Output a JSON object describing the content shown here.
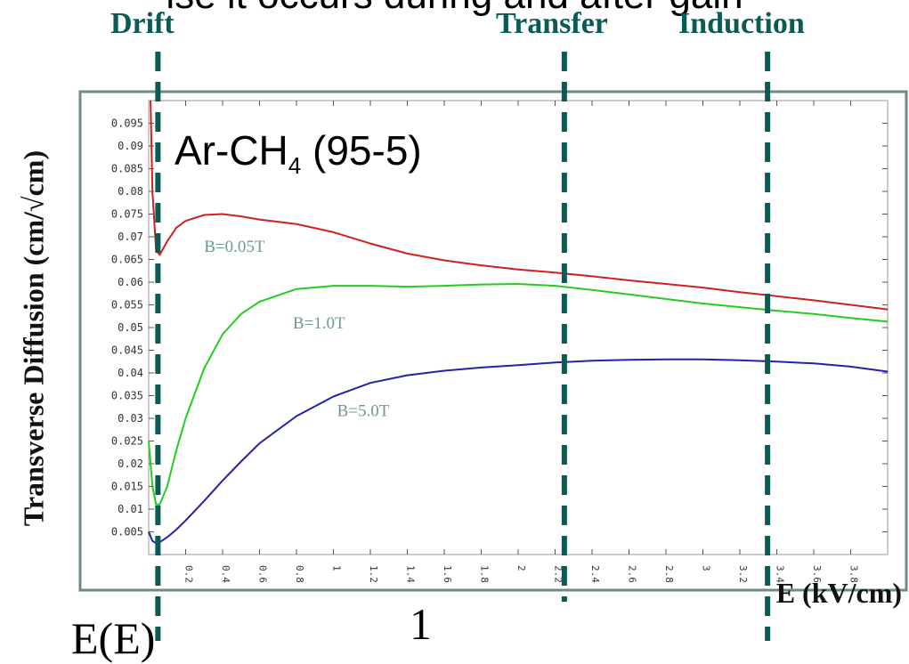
{
  "header": {
    "cut_banner": "ise it occurs during and after gain",
    "regions": [
      "Drift",
      "Transfer",
      "Induction"
    ]
  },
  "formula_fragment": {
    "left": "E(E)",
    "right": "1"
  },
  "chart_data": {
    "type": "line",
    "title": "",
    "annotation": {
      "gas_prefix": "Ar-CH",
      "gas_sub": "4",
      "gas_suffix": " (95-5)"
    },
    "xlabel": "E (kV/cm)",
    "ylabel": "Transverse Diffusion (cm/√cm)",
    "xlim": [
      0,
      4.0
    ],
    "ylim": [
      0,
      0.1
    ],
    "xticks": [
      "0.2",
      "0.4",
      "0.6",
      "0.8",
      "1",
      "1.2",
      "1.4",
      "1.6",
      "1.8",
      "2",
      "2.2",
      "2.4",
      "2.6",
      "2.8",
      "3",
      "3.2",
      "3.4",
      "3.6",
      "3.8"
    ],
    "yticks": [
      "0.005",
      "0.01",
      "0.015",
      "0.02",
      "0.025",
      "0.03",
      "0.035",
      "0.04",
      "0.045",
      "0.05",
      "0.055",
      "0.06",
      "0.065",
      "0.07",
      "0.075",
      "0.08",
      "0.085",
      "0.09",
      "0.095"
    ],
    "region_boundaries_x": [
      0.05,
      2.25,
      3.35
    ],
    "colors": {
      "B=0.05T": "#cc2222",
      "B=1.0T": "#22cc22",
      "B=5.0T": "#2222aa",
      "labels": "#6e9a8e",
      "region_lines": "#0b5a55"
    },
    "series": [
      {
        "name": "B=0.05T",
        "x": [
          0.01,
          0.02,
          0.04,
          0.06,
          0.1,
          0.15,
          0.2,
          0.3,
          0.4,
          0.5,
          0.6,
          0.8,
          1.0,
          1.2,
          1.4,
          1.6,
          1.8,
          2.0,
          2.2,
          2.4,
          2.6,
          2.8,
          3.0,
          3.2,
          3.4,
          3.6,
          3.8,
          4.0
        ],
        "y": [
          0.1,
          0.08,
          0.067,
          0.066,
          0.069,
          0.072,
          0.0735,
          0.0748,
          0.075,
          0.0745,
          0.0738,
          0.0728,
          0.071,
          0.0685,
          0.0663,
          0.0648,
          0.0637,
          0.0628,
          0.0621,
          0.0613,
          0.0604,
          0.0596,
          0.0588,
          0.0578,
          0.0569,
          0.056,
          0.055,
          0.054
        ]
      },
      {
        "name": "B=1.0T",
        "x": [
          0.0,
          0.02,
          0.04,
          0.06,
          0.1,
          0.15,
          0.2,
          0.3,
          0.4,
          0.5,
          0.6,
          0.8,
          1.0,
          1.2,
          1.4,
          1.6,
          1.8,
          2.0,
          2.2,
          2.4,
          2.6,
          2.8,
          3.0,
          3.2,
          3.4,
          3.6,
          3.8,
          4.0
        ],
        "y": [
          0.025,
          0.015,
          0.011,
          0.011,
          0.015,
          0.023,
          0.03,
          0.041,
          0.0485,
          0.053,
          0.0557,
          0.0585,
          0.0592,
          0.0592,
          0.059,
          0.0592,
          0.0595,
          0.0596,
          0.0592,
          0.0583,
          0.0573,
          0.0563,
          0.0553,
          0.0545,
          0.0537,
          0.053,
          0.0521,
          0.0513
        ]
      },
      {
        "name": "B=5.0T",
        "x": [
          0.0,
          0.02,
          0.04,
          0.06,
          0.1,
          0.15,
          0.2,
          0.3,
          0.4,
          0.5,
          0.6,
          0.8,
          1.0,
          1.2,
          1.4,
          1.6,
          1.8,
          2.0,
          2.2,
          2.4,
          2.6,
          2.8,
          3.0,
          3.2,
          3.4,
          3.6,
          3.8,
          4.0
        ],
        "y": [
          0.005,
          0.003,
          0.0025,
          0.0027,
          0.0038,
          0.0055,
          0.0075,
          0.0118,
          0.0163,
          0.0205,
          0.0245,
          0.0305,
          0.0348,
          0.0378,
          0.0395,
          0.0405,
          0.0412,
          0.0417,
          0.0423,
          0.0427,
          0.0429,
          0.043,
          0.043,
          0.0428,
          0.0425,
          0.0421,
          0.0414,
          0.0403
        ]
      }
    ],
    "series_labels": [
      "B=0.05T",
      "B=1.0T",
      "B=5.0T"
    ]
  }
}
